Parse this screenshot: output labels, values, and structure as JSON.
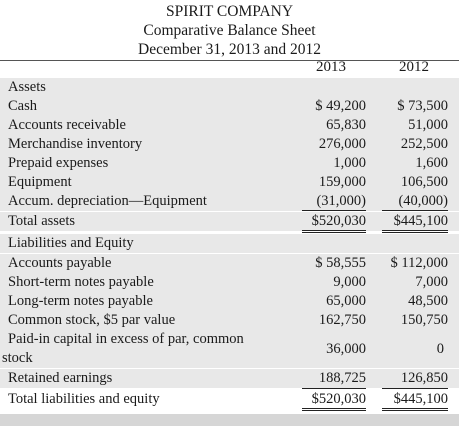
{
  "header": {
    "company": "SPIRIT COMPANY",
    "title": "Comparative Balance Sheet",
    "dates": "December 31, 2013 and 2012"
  },
  "columns": [
    "2013",
    "2012"
  ],
  "rows": [
    {
      "label": "Assets",
      "v2013": "",
      "v2012": ""
    },
    {
      "label": "Cash",
      "v2013": "$ 49,200",
      "v2012": "$ 73,500"
    },
    {
      "label": "Accounts receivable",
      "v2013": "65,830",
      "v2012": "51,000"
    },
    {
      "label": "Merchandise inventory",
      "v2013": "276,000",
      "v2012": "252,500"
    },
    {
      "label": "Prepaid expenses",
      "v2013": "1,000",
      "v2012": "1,600"
    },
    {
      "label": "Equipment",
      "v2013": "159,000",
      "v2012": "106,500"
    },
    {
      "label": "Accum. depreciation—Equipment",
      "v2013": "(31,000)",
      "v2012": "(40,000)"
    },
    {
      "label": "Total assets",
      "v2013": "$520,030",
      "v2012": "$445,100"
    },
    {
      "label": "Liabilities and Equity",
      "v2013": "",
      "v2012": ""
    },
    {
      "label": "Accounts payable",
      "v2013": "$ 58,555",
      "v2012": "$ 112,000"
    },
    {
      "label": "Short-term notes payable",
      "v2013": "9,000",
      "v2012": "7,000"
    },
    {
      "label": "Long-term notes payable",
      "v2013": "65,000",
      "v2012": "48,500"
    },
    {
      "label": "Common stock, $5 par value",
      "v2013": "162,750",
      "v2012": "150,750"
    },
    {
      "label": "Paid-in capital in excess of par, common",
      "label2": "stock",
      "v2013": "36,000",
      "v2012": "0"
    },
    {
      "label": "Retained earnings",
      "v2013": "188,725",
      "v2012": "126,850"
    },
    {
      "label": "Total liabilities and equity",
      "v2013": "$520,030",
      "v2012": "$445,100"
    }
  ]
}
